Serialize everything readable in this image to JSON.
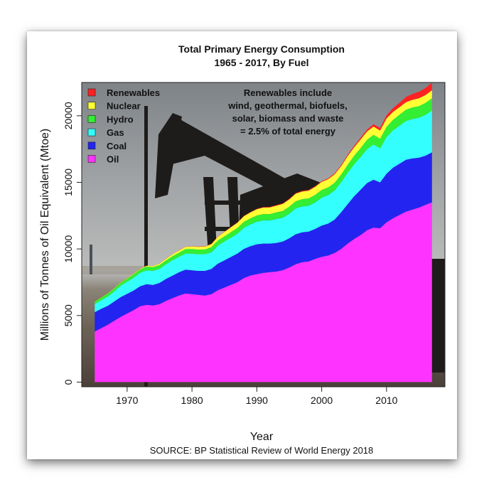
{
  "chart_data": {
    "type": "area",
    "stacked": true,
    "title": "Total Primary Energy Consumption",
    "subtitle": "1965 - 2017, By Fuel",
    "xlabel": "Year",
    "ylabel": "Millions of Tonnes of Oil Equivalent (Mtoe)",
    "source": "SOURCE: BP Statistical Review of World Energy 2018",
    "annotation": [
      "Renewables include",
      "wind, geothermal, biofuels,",
      "solar, biomass and waste",
      "= 2.5% of total energy"
    ],
    "xlim": [
      1963,
      2019
    ],
    "ylim": [
      -350,
      22500
    ],
    "x_ticks": [
      1970,
      1980,
      1990,
      2000,
      2010
    ],
    "y_ticks": [
      0,
      5000,
      10000,
      15000,
      20000
    ],
    "legend_position": "top-left",
    "grid": false,
    "x": [
      1965,
      1966,
      1967,
      1968,
      1969,
      1970,
      1971,
      1972,
      1973,
      1974,
      1975,
      1976,
      1977,
      1978,
      1979,
      1980,
      1981,
      1982,
      1983,
      1984,
      1985,
      1986,
      1987,
      1988,
      1989,
      1990,
      1991,
      1992,
      1993,
      1994,
      1995,
      1996,
      1997,
      1998,
      1999,
      2000,
      2001,
      2002,
      2003,
      2004,
      2005,
      2006,
      2007,
      2008,
      2009,
      2010,
      2011,
      2012,
      2013,
      2014,
      2015,
      2016,
      2017
    ],
    "series": [
      {
        "name": "Oil",
        "color": "#ff33ff",
        "values": [
          3800,
          4050,
          4300,
          4600,
          4900,
          5150,
          5400,
          5700,
          5800,
          5750,
          5850,
          6100,
          6300,
          6500,
          6650,
          6600,
          6550,
          6500,
          6600,
          6900,
          7100,
          7300,
          7500,
          7800,
          8000,
          8100,
          8200,
          8250,
          8300,
          8400,
          8600,
          8850,
          9000,
          9050,
          9250,
          9400,
          9500,
          9700,
          10000,
          10400,
          10750,
          11050,
          11400,
          11600,
          11550,
          12000,
          12300,
          12550,
          12800,
          12950,
          13100,
          13300,
          13500
        ]
      },
      {
        "name": "Coal",
        "color": "#2424f0",
        "values": [
          1450,
          1450,
          1420,
          1450,
          1480,
          1480,
          1480,
          1500,
          1550,
          1550,
          1600,
          1650,
          1700,
          1750,
          1800,
          1800,
          1800,
          1850,
          1900,
          2000,
          2050,
          2100,
          2150,
          2200,
          2200,
          2250,
          2200,
          2150,
          2150,
          2150,
          2200,
          2250,
          2250,
          2250,
          2250,
          2350,
          2400,
          2500,
          2750,
          2950,
          3200,
          3400,
          3550,
          3600,
          3450,
          3650,
          3800,
          3850,
          3900,
          3850,
          3750,
          3700,
          3750
        ]
      },
      {
        "name": "Gas",
        "color": "#33ffff",
        "values": [
          600,
          650,
          700,
          750,
          850,
          900,
          950,
          1000,
          1050,
          1050,
          1050,
          1100,
          1150,
          1150,
          1200,
          1250,
          1250,
          1250,
          1250,
          1350,
          1400,
          1450,
          1500,
          1600,
          1650,
          1700,
          1750,
          1750,
          1800,
          1800,
          1850,
          1950,
          1950,
          1950,
          2000,
          2100,
          2150,
          2200,
          2250,
          2350,
          2400,
          2450,
          2550,
          2650,
          2550,
          2750,
          2800,
          2850,
          2900,
          2950,
          3000,
          3050,
          3150
        ]
      },
      {
        "name": "Hydro",
        "color": "#33ee33",
        "values": [
          200,
          210,
          220,
          230,
          240,
          250,
          260,
          270,
          280,
          290,
          300,
          300,
          310,
          330,
          340,
          350,
          355,
          365,
          375,
          390,
          400,
          410,
          420,
          430,
          440,
          460,
          470,
          470,
          490,
          500,
          520,
          530,
          540,
          550,
          560,
          570,
          570,
          580,
          590,
          620,
          650,
          680,
          700,
          720,
          730,
          770,
          790,
          830,
          860,
          880,
          880,
          910,
          920
        ]
      },
      {
        "name": "Nuclear",
        "color": "#ffff33",
        "values": [
          5,
          10,
          15,
          20,
          25,
          30,
          35,
          45,
          55,
          70,
          90,
          110,
          130,
          150,
          160,
          180,
          200,
          220,
          240,
          280,
          330,
          370,
          400,
          430,
          450,
          470,
          490,
          500,
          510,
          530,
          550,
          570,
          570,
          580,
          600,
          610,
          620,
          630,
          620,
          640,
          630,
          640,
          620,
          620,
          610,
          630,
          600,
          560,
          560,
          570,
          580,
          590,
          600
        ]
      },
      {
        "name": "Renewables",
        "color": "#ff2222",
        "values": [
          10,
          10,
          10,
          10,
          10,
          10,
          10,
          10,
          10,
          10,
          10,
          12,
          12,
          14,
          15,
          16,
          18,
          20,
          22,
          24,
          26,
          28,
          30,
          32,
          34,
          36,
          38,
          40,
          42,
          44,
          46,
          48,
          52,
          56,
          60,
          64,
          70,
          78,
          88,
          100,
          115,
          130,
          150,
          170,
          200,
          240,
          290,
          340,
          390,
          440,
          490,
          530,
          560
        ]
      }
    ]
  }
}
